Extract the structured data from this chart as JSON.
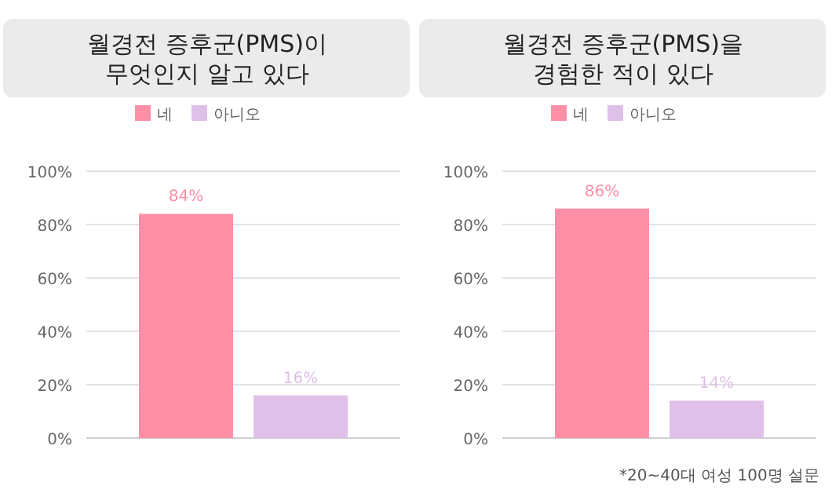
{
  "chart_data": [
    {
      "type": "bar",
      "title": "월경전 증후군(PMS)이\n무엇인지 알고 있다",
      "categories": [
        null
      ],
      "legend": "top",
      "grid": "y",
      "ylim": [
        0,
        100
      ],
      "yticks": [
        {
          "value": 0,
          "label": "0%"
        },
        {
          "value": 20,
          "label": "20%"
        },
        {
          "value": 40,
          "label": "40%"
        },
        {
          "value": 60,
          "label": "60%"
        },
        {
          "value": 80,
          "label": "80%"
        },
        {
          "value": 100,
          "label": "100%"
        }
      ],
      "series": [
        {
          "name": "네",
          "color": "#ff8fa6",
          "values": [
            84
          ],
          "value_labels": [
            "84%"
          ]
        },
        {
          "name": "아니오",
          "color": "#dfc0e8",
          "values": [
            16
          ],
          "value_labels": [
            "16%"
          ]
        }
      ]
    },
    {
      "type": "bar",
      "title": "월경전 증후군(PMS)을\n경험한 적이 있다",
      "categories": [
        null
      ],
      "legend": "top",
      "grid": "y",
      "ylim": [
        0,
        100
      ],
      "yticks": [
        {
          "value": 0,
          "label": "0%"
        },
        {
          "value": 20,
          "label": "20%"
        },
        {
          "value": 40,
          "label": "40%"
        },
        {
          "value": 60,
          "label": "60%"
        },
        {
          "value": 80,
          "label": "80%"
        },
        {
          "value": 100,
          "label": "100%"
        }
      ],
      "annotations": [
        "*20~40대 여성 100명 설문"
      ],
      "series": [
        {
          "name": "네",
          "color": "#ff8fa6",
          "values": [
            86
          ],
          "value_labels": [
            "86%"
          ]
        },
        {
          "name": "아니오",
          "color": "#dfc0e8",
          "values": [
            14
          ],
          "value_labels": [
            "14%"
          ]
        }
      ]
    }
  ]
}
